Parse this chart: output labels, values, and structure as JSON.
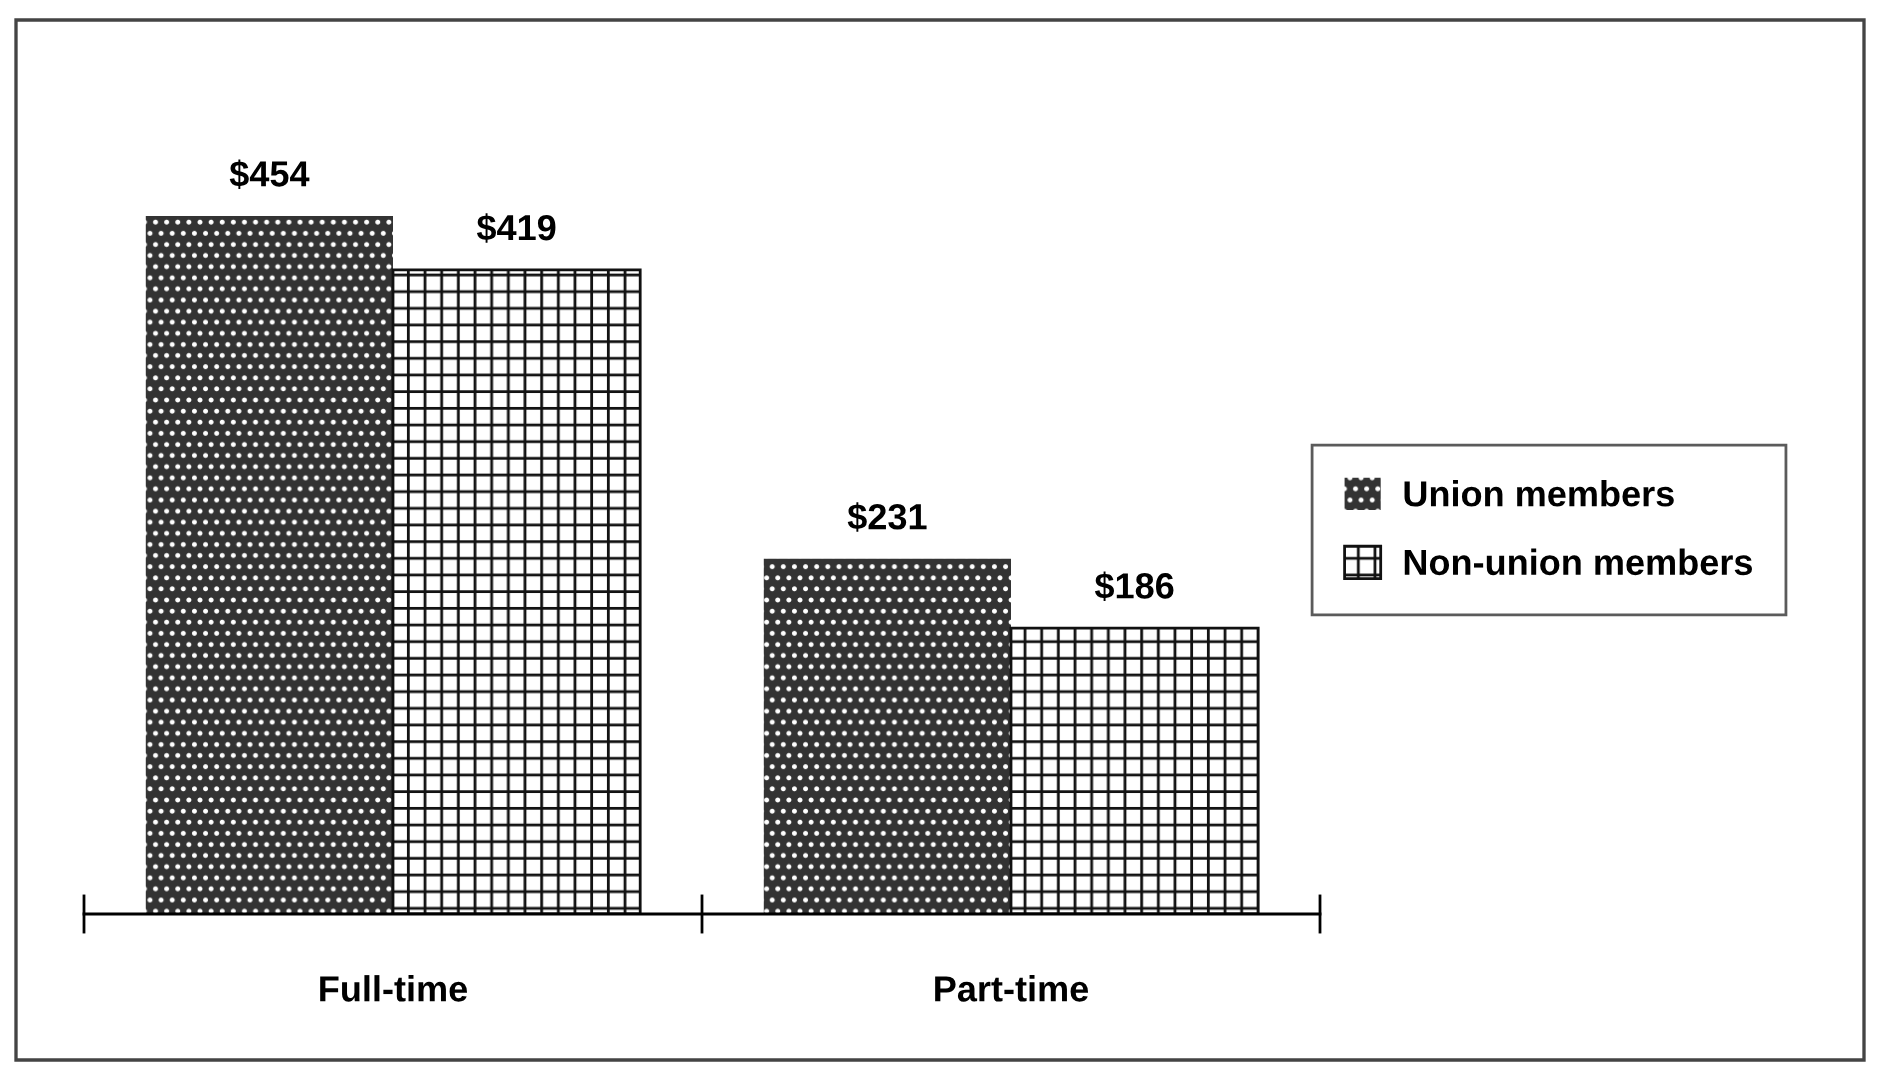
{
  "chart_data": {
    "type": "bar",
    "categories": [
      "Full-time",
      "Part-time"
    ],
    "series": [
      {
        "name": "Union members",
        "color": "#333333",
        "values": [
          454,
          231
        ],
        "value_labels": [
          "$454",
          "$231"
        ]
      },
      {
        "name": "Non-union members",
        "color": "#111111",
        "values": [
          419,
          186
        ],
        "value_labels": [
          "$419",
          "$186"
        ]
      }
    ],
    "legend": "right",
    "tick_labels": "x"
  }
}
